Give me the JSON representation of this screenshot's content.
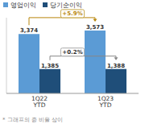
{
  "chart_data": {
    "type": "bar",
    "categories": [
      "1Q22\nYTD",
      "1Q23\nYTD"
    ],
    "series": [
      {
        "name": "영업이익",
        "color": "#5b9bd5",
        "values": [
          3374,
          3573
        ],
        "value_labels": [
          "3,374",
          "3,573"
        ]
      },
      {
        "name": "당기순이익",
        "color": "#1f4e79",
        "values": [
          1385,
          1388
        ],
        "value_labels": [
          "1,385",
          "1,388"
        ]
      }
    ],
    "ylim": [
      0,
      4300
    ],
    "tick_labels": "x",
    "data_labels": true,
    "legend": "upper left",
    "annotations": [
      "+5.9%",
      "+0.2%"
    ],
    "caption": "* 그래프의 증 비율 상이"
  }
}
